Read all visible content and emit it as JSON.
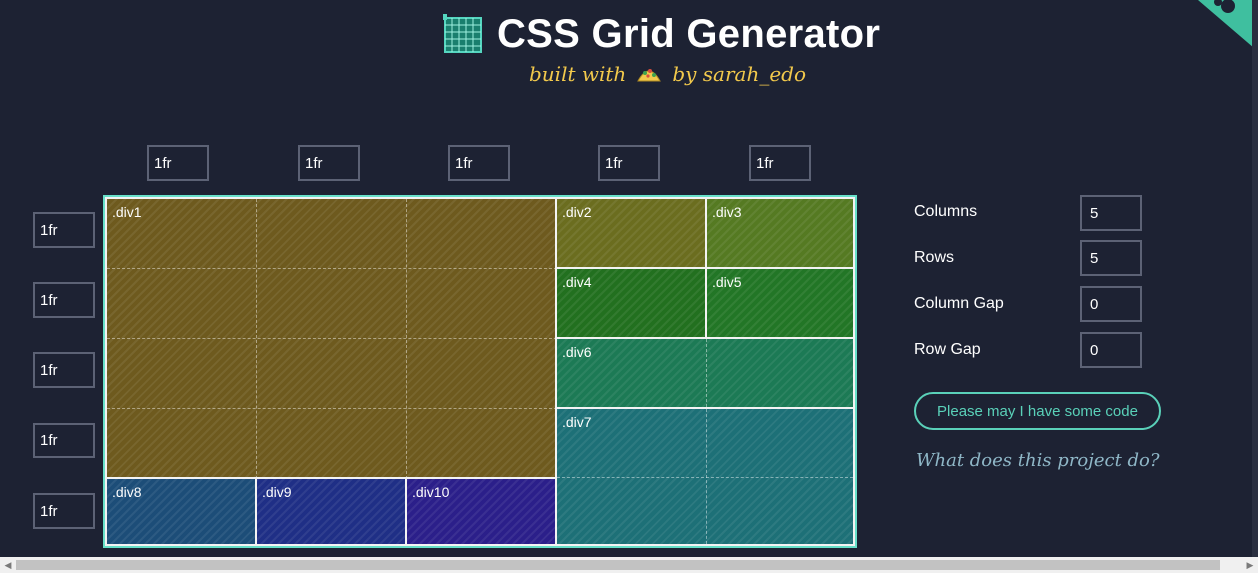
{
  "header": {
    "title": "CSS Grid Generator",
    "subtitle_prefix": "built with",
    "subtitle_suffix": "by sarah_edo"
  },
  "columns": [
    "1fr",
    "1fr",
    "1fr",
    "1fr",
    "1fr"
  ],
  "rows": [
    "1fr",
    "1fr",
    "1fr",
    "1fr",
    "1fr"
  ],
  "grid_areas": [
    {
      "label": ".div1",
      "color": "#6e5a1e"
    },
    {
      "label": ".div2",
      "color": "#6b6d1f"
    },
    {
      "label": ".div3",
      "color": "#557a22"
    },
    {
      "label": ".div4",
      "color": "#22701f"
    },
    {
      "label": ".div5",
      "color": "#227626"
    },
    {
      "label": ".div6",
      "color": "#1c7a55"
    },
    {
      "label": ".div7",
      "color": "#1d7077"
    },
    {
      "label": ".div8",
      "color": "#1c4d78"
    },
    {
      "label": ".div9",
      "color": "#1f2f86"
    },
    {
      "label": ".div10",
      "color": "#2b1f8a"
    }
  ],
  "controls": {
    "columns_label": "Columns",
    "columns_value": "5",
    "rows_label": "Rows",
    "rows_value": "5",
    "column_gap_label": "Column Gap",
    "column_gap_value": "0",
    "row_gap_label": "Row Gap",
    "row_gap_value": "0"
  },
  "code_button": "Please may I have some code",
  "what_link": "What does this project do?",
  "colors": {
    "background": "#1d2233",
    "grid_border": "#67e0c9",
    "accent": "#5ad1b9",
    "subtitle": "#f2c94c"
  },
  "icons": [
    "grid-logo-icon",
    "taco-icon",
    "corner-ribbon-icon"
  ]
}
